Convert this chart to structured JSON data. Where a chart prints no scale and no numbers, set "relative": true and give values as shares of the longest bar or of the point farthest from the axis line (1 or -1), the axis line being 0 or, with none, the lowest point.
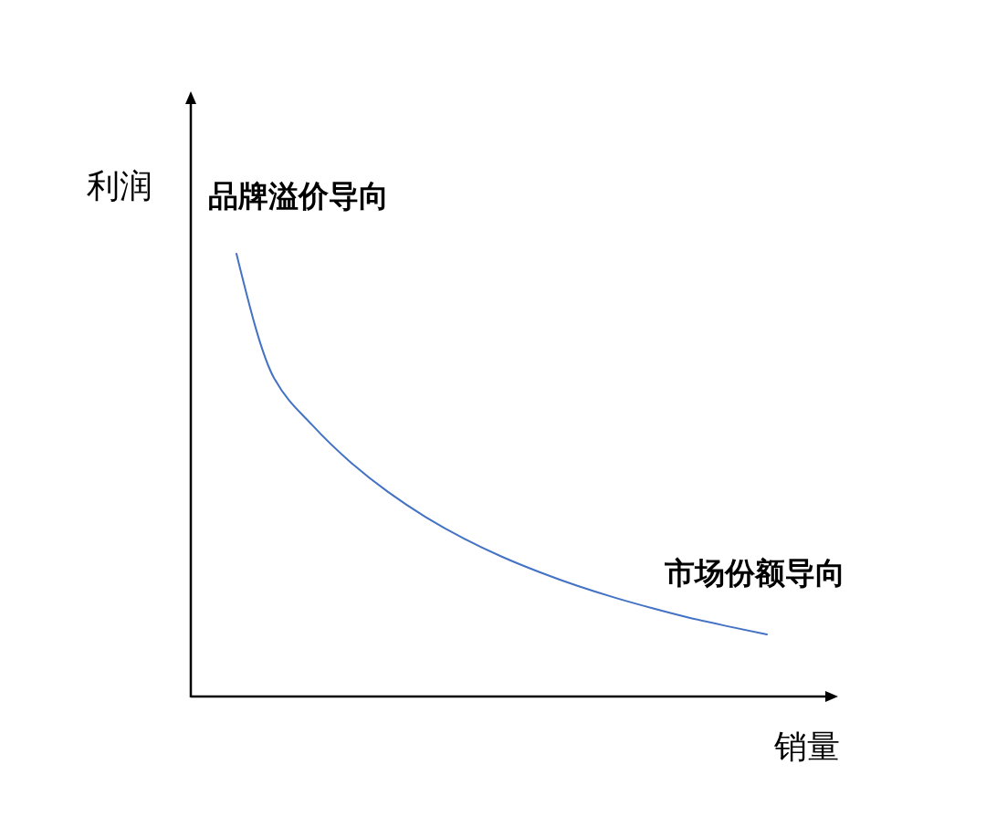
{
  "chart_data": {
    "type": "line",
    "relative": true,
    "xlabel": "销量",
    "ylabel": "利润",
    "annotations": [
      "品牌溢价导向",
      "市场份额导向"
    ],
    "categories": [
      null,
      null,
      null,
      null,
      null,
      null,
      null,
      null,
      null,
      null,
      null,
      null,
      null,
      null,
      null
    ],
    "series": [
      {
        "color": "#4472c4",
        "values": [
          1,
          0.718,
          0.613,
          0.53,
          0.462,
          0.405,
          0.357,
          0.316,
          0.281,
          0.25,
          0.223,
          0.199,
          0.177,
          0.158,
          0.14
        ]
      }
    ]
  }
}
